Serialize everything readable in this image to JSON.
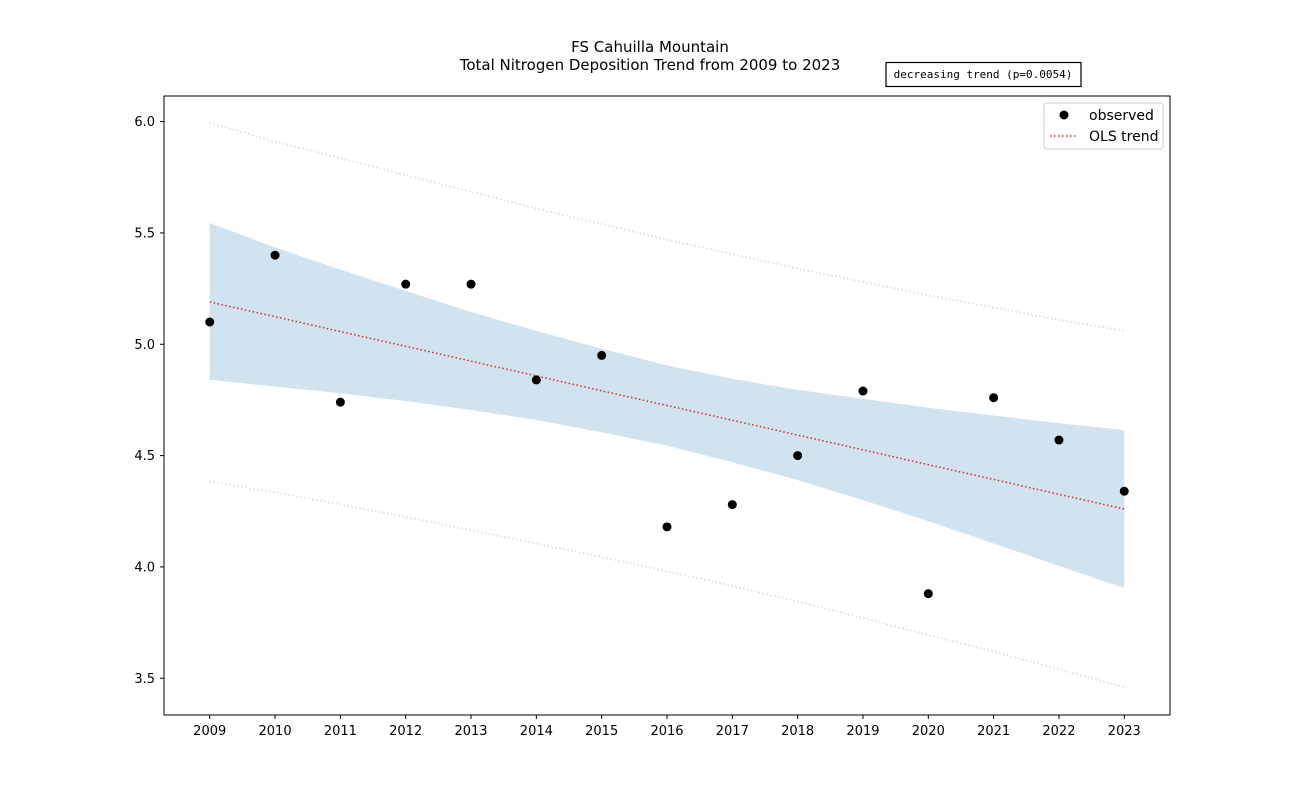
{
  "chart_data": {
    "type": "scatter",
    "title": "FS Cahuilla Mountain",
    "subtitle": "Total Nitrogen Deposition Trend from 2009 to 2023",
    "xlabel": "",
    "ylabel": "",
    "x": [
      2009,
      2010,
      2011,
      2012,
      2013,
      2014,
      2015,
      2016,
      2017,
      2018,
      2019,
      2020,
      2021,
      2022,
      2023
    ],
    "x_ticks": [
      "2009",
      "2010",
      "2011",
      "2012",
      "2013",
      "2014",
      "2015",
      "2016",
      "2017",
      "2018",
      "2019",
      "2020",
      "2021",
      "2022",
      "2023"
    ],
    "y_ticks": [
      "3.5",
      "4.0",
      "4.5",
      "5.0",
      "5.5",
      "6.0"
    ],
    "xlim": [
      2008.3,
      2023.7
    ],
    "ylim": [
      3.335,
      6.115
    ],
    "grid": false,
    "legend_position": "top-right",
    "annotation": "decreasing trend (p=0.0054)",
    "series": [
      {
        "name": "observed",
        "kind": "points",
        "color": "#000000",
        "values": [
          5.1,
          5.4,
          4.74,
          5.27,
          5.27,
          4.84,
          4.95,
          4.18,
          4.28,
          4.5,
          4.79,
          3.88,
          4.76,
          4.57,
          4.34
        ]
      },
      {
        "name": "OLS trend",
        "kind": "line",
        "color": "#d62728",
        "style": "dotted",
        "values": [
          5.19,
          5.124,
          5.057,
          4.991,
          4.924,
          4.858,
          4.791,
          4.725,
          4.659,
          4.592,
          4.526,
          4.459,
          4.393,
          4.326,
          4.26
        ]
      }
    ],
    "confidence_band": {
      "color": "#d1e3ef",
      "lower": [
        4.84,
        4.81,
        4.78,
        4.745,
        4.705,
        4.66,
        4.605,
        4.545,
        4.47,
        4.39,
        4.3,
        4.205,
        4.105,
        4.005,
        3.905
      ],
      "upper": [
        5.545,
        5.435,
        5.335,
        5.24,
        5.145,
        5.06,
        4.98,
        4.905,
        4.845,
        4.795,
        4.755,
        4.715,
        4.68,
        4.645,
        4.615
      ]
    },
    "prediction_interval": {
      "color": "#cfdde6",
      "lower": [
        4.385,
        4.335,
        4.28,
        4.225,
        4.165,
        4.105,
        4.045,
        3.98,
        3.915,
        3.845,
        3.77,
        3.695,
        3.62,
        3.54,
        3.46
      ],
      "upper": [
        5.995,
        5.91,
        5.835,
        5.76,
        5.685,
        5.61,
        5.54,
        5.47,
        5.405,
        5.34,
        5.28,
        5.22,
        5.165,
        5.11,
        5.06
      ]
    }
  }
}
